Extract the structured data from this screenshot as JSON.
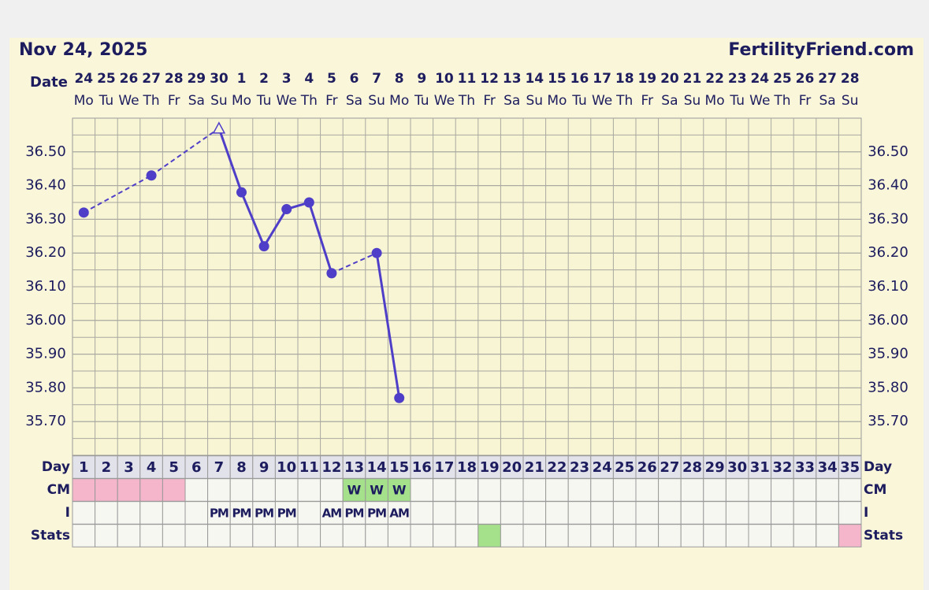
{
  "chart_data": {
    "type": "line",
    "title": "Nov 24, 2025",
    "site": "FertilityFriend.com",
    "date_label": "Date",
    "dates": [
      "24",
      "25",
      "26",
      "27",
      "28",
      "29",
      "30",
      "1",
      "2",
      "3",
      "4",
      "5",
      "6",
      "7",
      "8",
      "9",
      "10",
      "11",
      "12",
      "13",
      "14",
      "15",
      "16",
      "17",
      "18",
      "19",
      "20",
      "21",
      "22",
      "23",
      "24",
      "25",
      "26",
      "27",
      "28"
    ],
    "weekdays": [
      "Mo",
      "Tu",
      "We",
      "Th",
      "Fr",
      "Sa",
      "Su",
      "Mo",
      "Tu",
      "We",
      "Th",
      "Fr",
      "Sa",
      "Su",
      "Mo",
      "Tu",
      "We",
      "Th",
      "Fr",
      "Sa",
      "Su",
      "Mo",
      "Tu",
      "We",
      "Th",
      "Fr",
      "Sa",
      "Su",
      "Mo",
      "Tu",
      "We",
      "Th",
      "Fr",
      "Sa",
      "Su"
    ],
    "values": [
      36.32,
      null,
      null,
      36.43,
      null,
      null,
      36.57,
      36.38,
      36.22,
      36.33,
      36.35,
      36.14,
      null,
      36.2,
      35.77,
      null,
      null,
      null,
      null,
      null,
      null,
      null,
      null,
      null,
      null,
      null,
      null,
      null,
      null,
      null,
      null,
      null,
      null,
      null,
      null
    ],
    "triangle_points": [
      6
    ],
    "color": "#4f3fc8",
    "ylim": [
      35.6,
      36.6
    ],
    "yticks": [
      {
        "value": 36.5,
        "label": "36.50"
      },
      {
        "value": 36.4,
        "label": "36.40"
      },
      {
        "value": 36.3,
        "label": "36.30"
      },
      {
        "value": 36.2,
        "label": "36.20"
      },
      {
        "value": 36.1,
        "label": "36.10"
      },
      {
        "value": 36.0,
        "label": "36.00"
      },
      {
        "value": 35.9,
        "label": "35.90"
      },
      {
        "value": 35.8,
        "label": "35.80"
      },
      {
        "value": 35.7,
        "label": "35.70"
      }
    ],
    "grid": true,
    "row_labels": {
      "day": "Day",
      "cm": "CM",
      "intercourse": "I",
      "stats": "Stats"
    },
    "cycle_days": [
      1,
      2,
      3,
      4,
      5,
      6,
      7,
      8,
      9,
      10,
      11,
      12,
      13,
      14,
      15,
      16,
      17,
      18,
      19,
      20,
      21,
      22,
      23,
      24,
      25,
      26,
      27,
      28,
      29,
      30,
      31,
      32,
      33,
      34,
      35
    ],
    "cm": {
      "labels": [
        null,
        null,
        null,
        null,
        null,
        null,
        null,
        null,
        null,
        null,
        null,
        null,
        "W",
        "W",
        "W",
        null,
        null,
        null,
        null,
        null,
        null,
        null,
        null,
        null,
        null,
        null,
        null,
        null,
        null,
        null,
        null,
        null,
        null,
        null,
        null
      ],
      "colors": [
        "#f5b6cb",
        "#f5b6cb",
        "#f5b6cb",
        "#f5b6cb",
        "#f5b6cb",
        null,
        null,
        null,
        null,
        null,
        null,
        null,
        "#a5e08a",
        "#a5e08a",
        "#a5e08a",
        null,
        null,
        null,
        null,
        null,
        null,
        null,
        null,
        null,
        null,
        null,
        null,
        null,
        null,
        null,
        null,
        null,
        null,
        null,
        null
      ]
    },
    "intercourse": [
      null,
      null,
      null,
      null,
      null,
      null,
      "PM",
      "PM",
      "PM",
      "PM",
      null,
      "AM",
      "PM",
      "PM",
      "AM",
      null,
      null,
      null,
      null,
      null,
      null,
      null,
      null,
      null,
      null,
      null,
      null,
      null,
      null,
      null,
      null,
      null,
      null,
      null,
      null
    ],
    "stats_colors": [
      null,
      null,
      null,
      null,
      null,
      null,
      null,
      null,
      null,
      null,
      null,
      null,
      null,
      null,
      null,
      null,
      null,
      null,
      "#a5e08a",
      null,
      null,
      null,
      null,
      null,
      null,
      null,
      null,
      null,
      null,
      null,
      null,
      null,
      null,
      null,
      "#f5b6cb"
    ]
  }
}
